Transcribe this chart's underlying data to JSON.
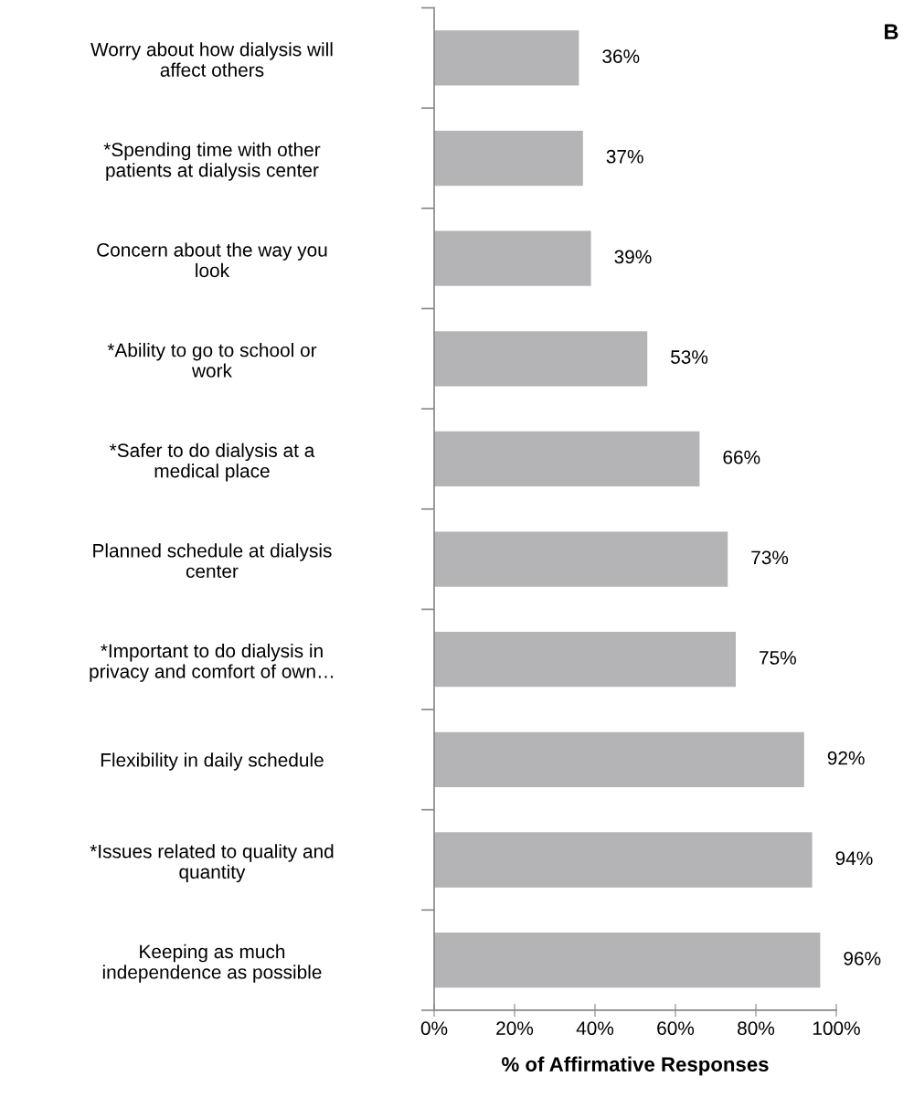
{
  "chart_data": {
    "type": "bar",
    "orientation": "horizontal",
    "categories": [
      "Worry about how dialysis will\naffect others",
      "*Spending time with other\npatients at dialysis center",
      "Concern about the way you\nlook",
      "*Ability to go to school or\nwork",
      "*Safer to do dialysis at a\nmedical place",
      "Planned schedule at dialysis\ncenter",
      "*Important to do dialysis in\nprivacy and comfort of own…",
      "Flexibility in daily schedule",
      "*Issues related to quality and\nquantity",
      "Keeping as much\nindependence as possible"
    ],
    "values": [
      36,
      37,
      39,
      53,
      66,
      73,
      75,
      92,
      94,
      96
    ],
    "value_labels": [
      "36%",
      "37%",
      "39%",
      "53%",
      "66%",
      "73%",
      "75%",
      "92%",
      "94%",
      "96%"
    ],
    "color": "#b4b4b6",
    "xlim": [
      0,
      100
    ],
    "xticks": [
      {
        "value": 0,
        "label": "0%"
      },
      {
        "value": 20,
        "label": "20%"
      },
      {
        "value": 40,
        "label": "40%"
      },
      {
        "value": 60,
        "label": "60%"
      },
      {
        "value": 80,
        "label": "80%"
      },
      {
        "value": 100,
        "label": "100%"
      }
    ],
    "xlabel": "% of Affirmative Responses",
    "annotations": [
      "B"
    ],
    "grid": false,
    "legend": false
  }
}
